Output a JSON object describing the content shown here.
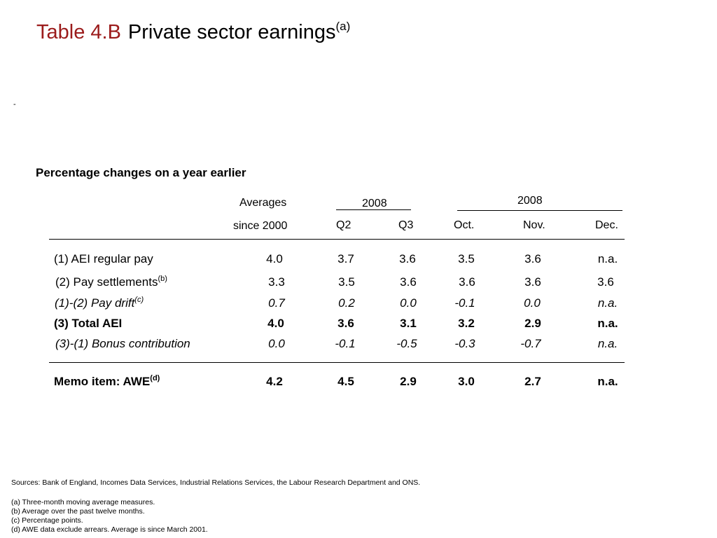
{
  "title": {
    "number": "Table 4.B",
    "text": "Private sector earnings",
    "sup": "(a)"
  },
  "marker": "-",
  "subtitle": "Percentage changes on a year earlier",
  "headers": {
    "averages_line1": "Averages",
    "averages_line2": "since 2000",
    "group1_year": "2008",
    "group2_year": "2008",
    "columns": [
      "Q2",
      "Q3",
      "Oct.",
      "Nov.",
      "Dec."
    ]
  },
  "rows": [
    {
      "label": "(1) AEI regular pay",
      "sup": "",
      "values": [
        "4.0",
        "3.7",
        "3.6",
        "3.5",
        "3.6",
        "n.a."
      ]
    },
    {
      "label": "(2) Pay settlements",
      "sup": "(b)",
      "values": [
        "3.3",
        "3.5",
        "3.6",
        "3.6",
        "3.6",
        "3.6"
      ]
    },
    {
      "label": "(1)-(2) Pay drift",
      "sup": "(c)",
      "values": [
        "0.7",
        "0.2",
        "0.0",
        "-0.1",
        "0.0",
        "n.a."
      ]
    },
    {
      "label": "(3) Total AEI",
      "sup": "",
      "values": [
        "4.0",
        "3.6",
        "3.1",
        "3.2",
        "2.9",
        "n.a."
      ]
    },
    {
      "label": "(3)-(1) Bonus contribution",
      "sup": "",
      "values": [
        "0.0",
        "-0.1",
        "-0.5",
        "-0.3",
        "-0.7",
        "n.a."
      ]
    }
  ],
  "memo": {
    "label": "Memo item: AWE",
    "sup": "(d)",
    "values": [
      "4.2",
      "4.5",
      "2.9",
      "3.0",
      "2.7",
      "n.a."
    ]
  },
  "sources": "Sources:  Bank of England, Incomes Data Services, Industrial Relations Services, the Labour Research Department and ONS.",
  "footnotes": [
    "(a)  Three-month moving average measures.",
    "(b)  Average over the past twelve months.",
    "(c)  Percentage points.",
    "(d)  AWE data exclude arrears.  Average is since March 2001."
  ]
}
